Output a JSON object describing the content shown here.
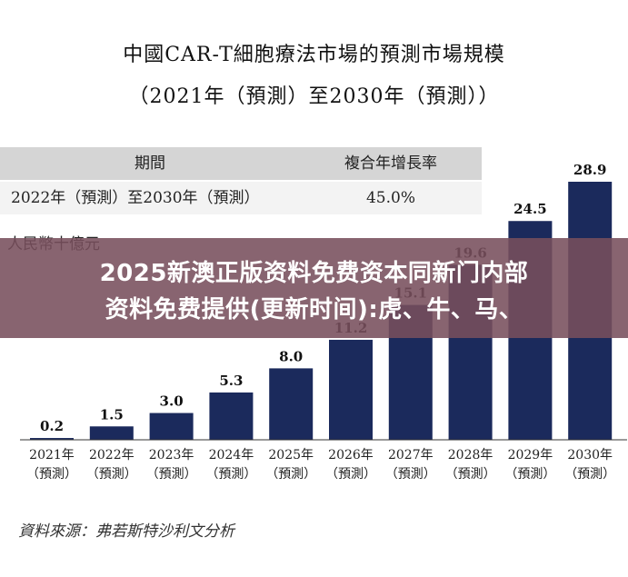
{
  "title_line1": "中國CAR-T細胞療法市場的預測市場規模",
  "title_line2": "（2021年（預測）至2030年（預測））",
  "cagr_table": {
    "header_period": "期間",
    "header_rate": "複合年增長率",
    "period": "2022年（預測）至2030年（預測）",
    "rate": "45.0%"
  },
  "unit_label": "人民幣十億元",
  "source": "資料來源：弗若斯特沙利文分析",
  "banner": {
    "line1": "2025新澳正版资料免费资本同新门内部",
    "line2": "资料免费提供(更新时间):虎、牛、马、"
  },
  "chart_data": {
    "type": "bar",
    "categories": [
      "2021年",
      "2022年",
      "2023年",
      "2024年",
      "2025年",
      "2026年",
      "2027年",
      "2028年",
      "2029年",
      "2030年"
    ],
    "category_sublabel": "（預測）",
    "values": [
      0.2,
      1.5,
      3.0,
      5.3,
      8.0,
      11.2,
      15.1,
      19.6,
      24.5,
      28.9
    ],
    "data_labels": [
      "0.2",
      "1.5",
      "3.0",
      "5.3",
      "8.0",
      "11.2",
      "15.1",
      "19.6",
      "24.5",
      "28.9"
    ],
    "ylim": [
      0,
      28.9
    ],
    "bar_color": "#1b2a5c",
    "grid": false
  }
}
